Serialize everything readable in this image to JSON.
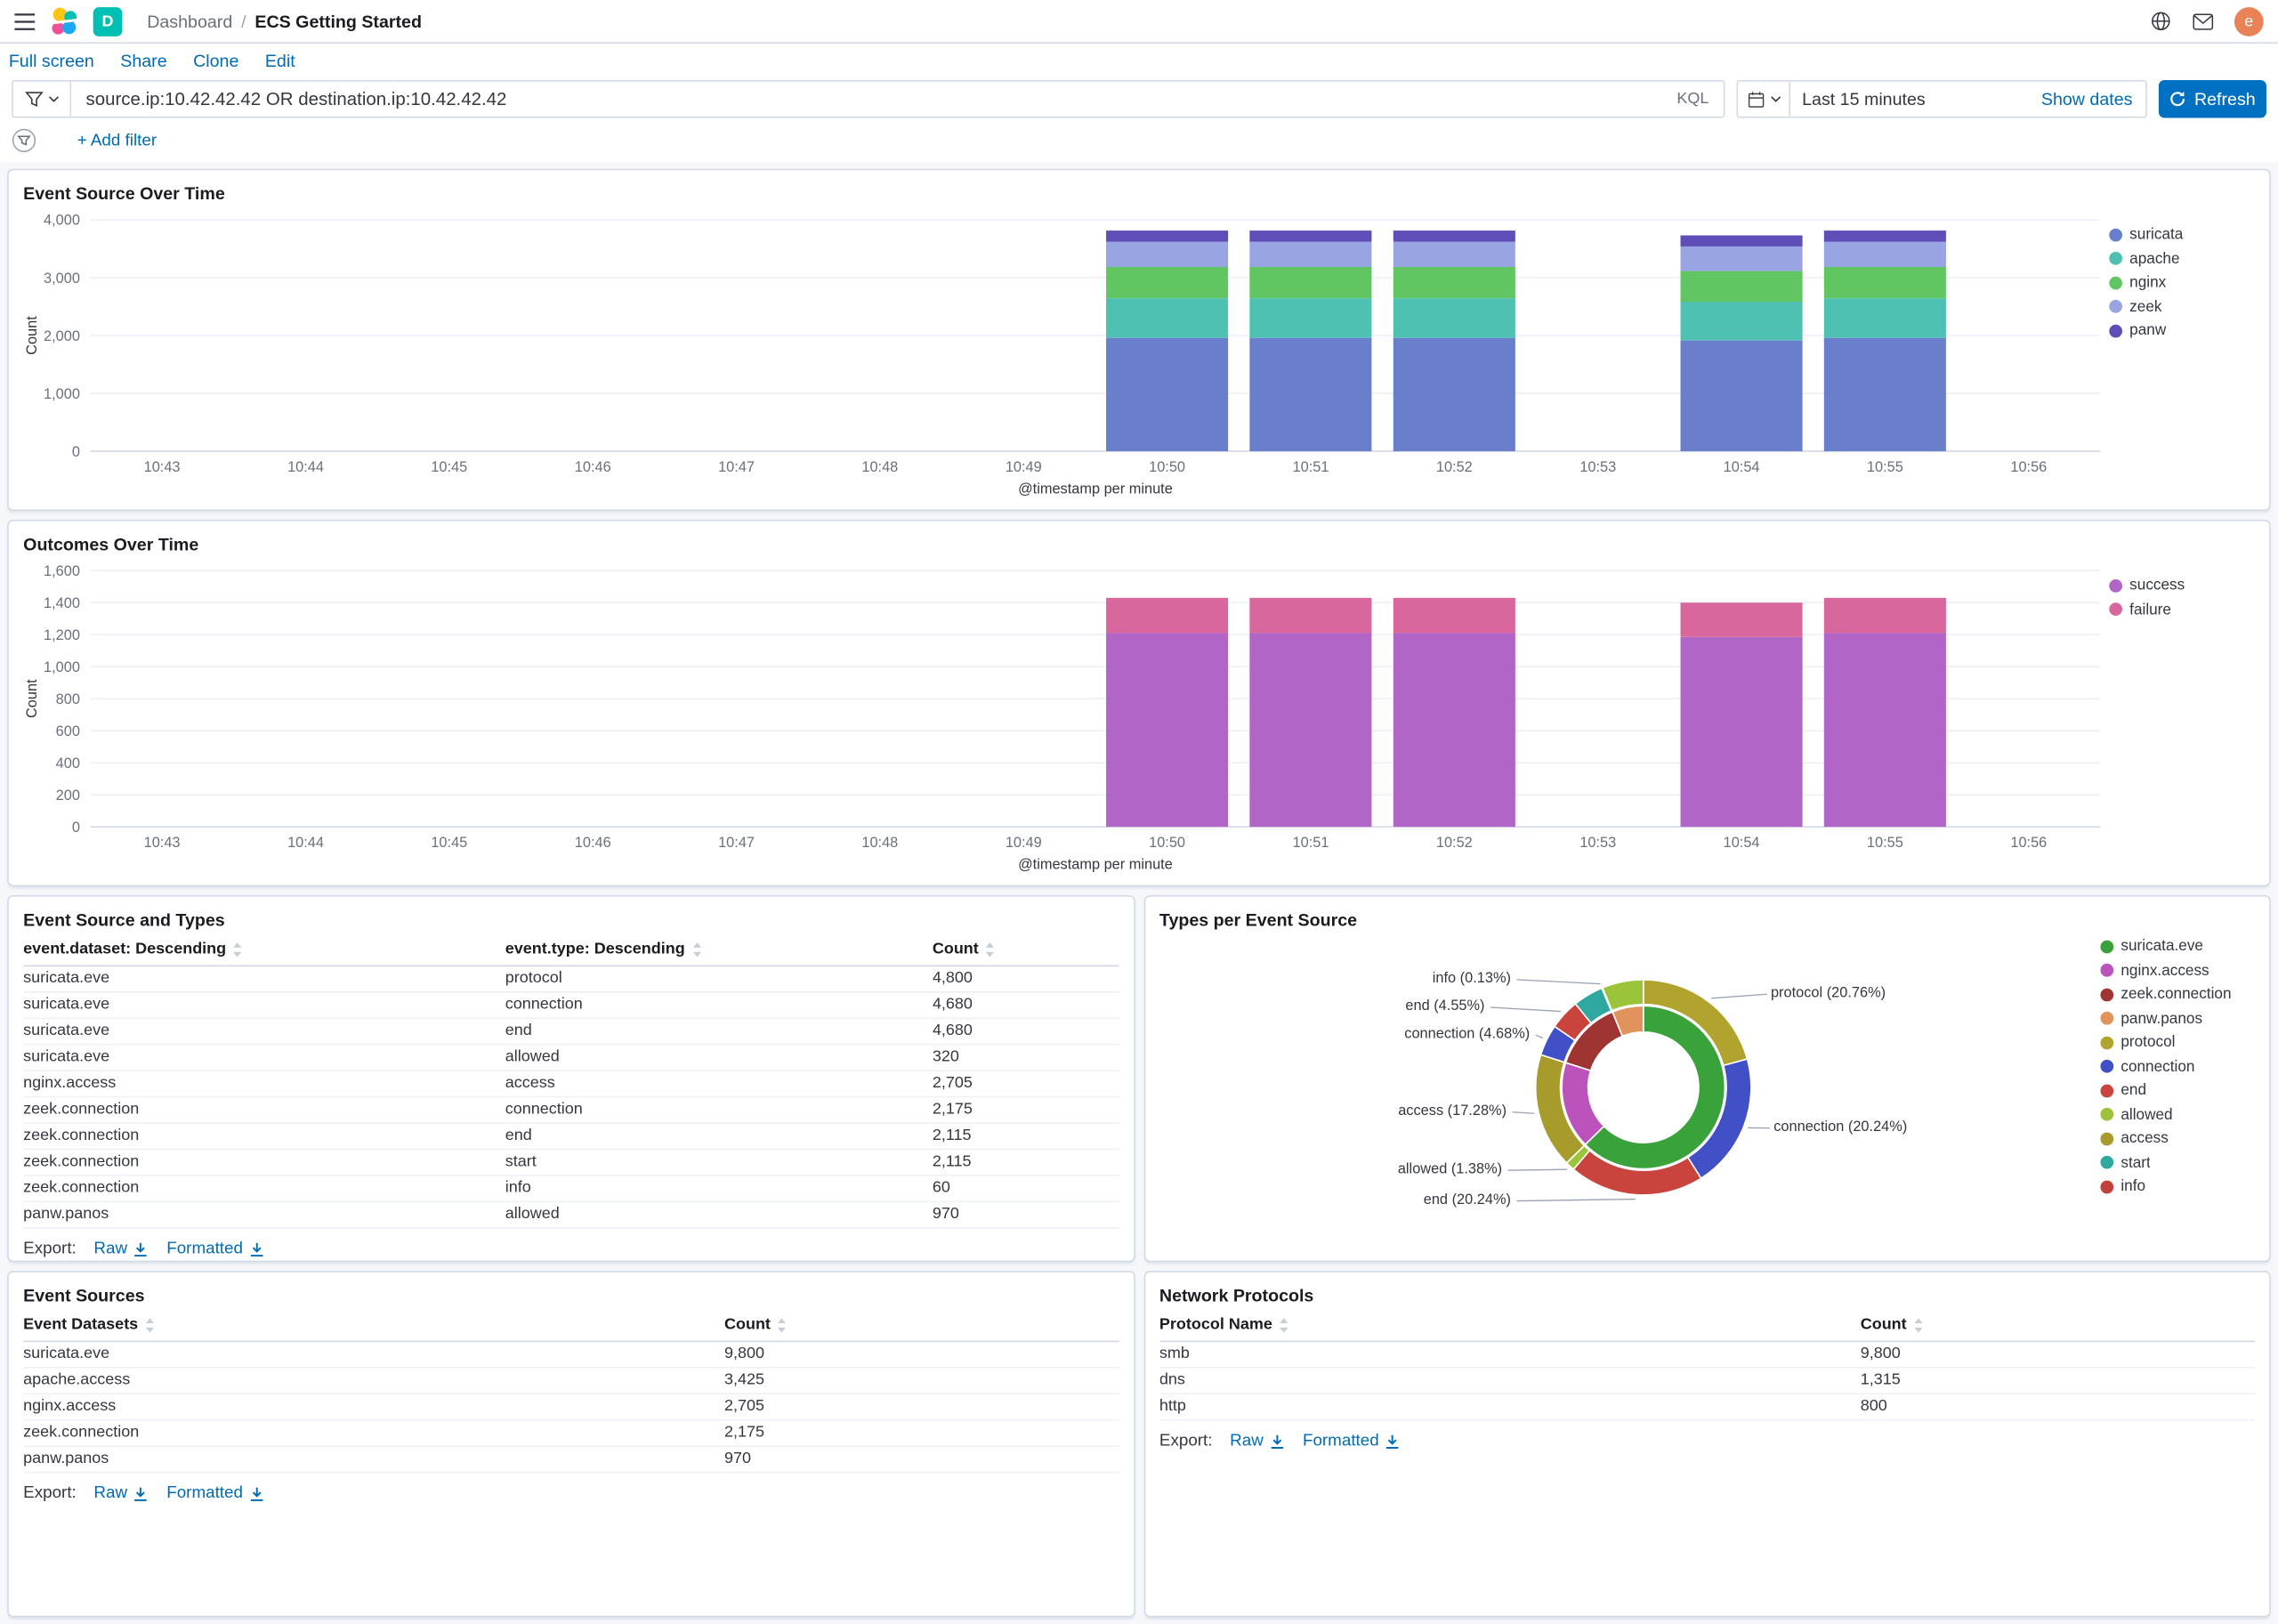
{
  "app": {
    "breadcrumbs": {
      "section": "Dashboard",
      "separator": "/",
      "current": "ECS Getting Started"
    },
    "space_initial": "D",
    "user_initial": "e"
  },
  "menu": {
    "full_screen": "Full screen",
    "share": "Share",
    "clone": "Clone",
    "edit": "Edit"
  },
  "query_bar": {
    "query": "source.ip:10.42.42.42 OR destination.ip:10.42.42.42",
    "language": "KQL",
    "time_range": "Last 15 minutes",
    "show_dates": "Show dates",
    "refresh": "Refresh"
  },
  "filter_bar": {
    "add_filter": "+ Add filter"
  },
  "export": {
    "label": "Export:",
    "raw": "Raw",
    "formatted": "Formatted"
  },
  "colors": {
    "primary": "#0071C2",
    "link": "#006BB4",
    "panel_border": "#D3DAE6",
    "page_background": "#F5F7FA"
  },
  "chart_data": [
    {
      "id": "event-source-over-time",
      "type": "bar",
      "stacked": true,
      "title": "Event Source Over Time",
      "xlabel": "@timestamp per minute",
      "ylabel": "Count",
      "ylim": [
        0,
        4000
      ],
      "ytick_step": 1000,
      "grid": true,
      "legend_position": "right",
      "categories": [
        "10:43",
        "10:44",
        "10:45",
        "10:46",
        "10:47",
        "10:48",
        "10:49",
        "10:50",
        "10:51",
        "10:52",
        "10:53",
        "10:54",
        "10:55",
        "10:56"
      ],
      "series": [
        {
          "name": "suricata",
          "color": "#6A7FCB",
          "values": [
            0,
            0,
            0,
            0,
            0,
            0,
            0,
            1960,
            1960,
            1960,
            0,
            1915,
            1960,
            0
          ]
        },
        {
          "name": "apache",
          "color": "#4EC1B2",
          "values": [
            0,
            0,
            0,
            0,
            0,
            0,
            0,
            685,
            685,
            685,
            0,
            670,
            685,
            0
          ]
        },
        {
          "name": "nginx",
          "color": "#61C561",
          "values": [
            0,
            0,
            0,
            0,
            0,
            0,
            0,
            541,
            541,
            541,
            0,
            530,
            541,
            0
          ]
        },
        {
          "name": "zeek",
          "color": "#99A5E2",
          "values": [
            0,
            0,
            0,
            0,
            0,
            0,
            0,
            435,
            435,
            435,
            0,
            425,
            435,
            0
          ]
        },
        {
          "name": "panw",
          "color": "#5F4EB8",
          "values": [
            0,
            0,
            0,
            0,
            0,
            0,
            0,
            194,
            194,
            194,
            0,
            190,
            194,
            0
          ]
        }
      ]
    },
    {
      "id": "outcomes-over-time",
      "type": "bar",
      "stacked": true,
      "title": "Outcomes Over Time",
      "xlabel": "@timestamp per minute",
      "ylabel": "Count",
      "ylim": [
        0,
        1600
      ],
      "ytick_step": 200,
      "grid": true,
      "legend_position": "right",
      "categories": [
        "10:43",
        "10:44",
        "10:45",
        "10:46",
        "10:47",
        "10:48",
        "10:49",
        "10:50",
        "10:51",
        "10:52",
        "10:53",
        "10:54",
        "10:55",
        "10:56"
      ],
      "series": [
        {
          "name": "success",
          "color": "#B165C6",
          "values": [
            0,
            0,
            0,
            0,
            0,
            0,
            0,
            1210,
            1210,
            1210,
            0,
            1185,
            1210,
            0
          ]
        },
        {
          "name": "failure",
          "color": "#D8679E",
          "values": [
            0,
            0,
            0,
            0,
            0,
            0,
            0,
            220,
            220,
            220,
            0,
            215,
            220,
            0
          ]
        }
      ]
    },
    {
      "id": "event-source-and-types",
      "type": "table",
      "title": "Event Source and Types",
      "columns": [
        {
          "label": "event.dataset: Descending",
          "width": "44%"
        },
        {
          "label": "event.type: Descending",
          "width": "39%"
        },
        {
          "label": "Count",
          "width": "17%"
        }
      ],
      "rows": [
        [
          "suricata.eve",
          "protocol",
          "4,800"
        ],
        [
          "suricata.eve",
          "connection",
          "4,680"
        ],
        [
          "suricata.eve",
          "end",
          "4,680"
        ],
        [
          "suricata.eve",
          "allowed",
          "320"
        ],
        [
          "nginx.access",
          "access",
          "2,705"
        ],
        [
          "zeek.connection",
          "connection",
          "2,175"
        ],
        [
          "zeek.connection",
          "end",
          "2,115"
        ],
        [
          "zeek.connection",
          "start",
          "2,115"
        ],
        [
          "zeek.connection",
          "info",
          "60"
        ],
        [
          "panw.panos",
          "allowed",
          "970"
        ]
      ]
    },
    {
      "id": "types-per-event-source",
      "type": "pie",
      "title": "Types per Event Source",
      "rings": {
        "inner": [
          {
            "name": "suricata.eve",
            "color": "#3AA23A",
            "pct": 62.62
          },
          {
            "name": "nginx.access",
            "color": "#BC52BC",
            "pct": 17.28
          },
          {
            "name": "zeek.connection",
            "color": "#9E3533",
            "pct": 13.91
          },
          {
            "name": "panw.panos",
            "color": "#E0945C",
            "pct": 6.19
          }
        ],
        "outer": [
          {
            "name": "protocol",
            "color": "#B0A32E",
            "pct": 20.76,
            "label": "protocol (20.76%)"
          },
          {
            "name": "connection",
            "color": "#4150C6",
            "pct": 20.24,
            "label": "connection (20.24%)"
          },
          {
            "name": "end",
            "color": "#C8443C",
            "pct": 20.24,
            "label": "end (20.24%)"
          },
          {
            "name": "allowed",
            "color": "#9CC43B",
            "pct": 1.38,
            "label": "allowed (1.38%)"
          },
          {
            "name": "access",
            "color": "#A79B2C",
            "pct": 17.28,
            "label": "access (17.28%)"
          },
          {
            "name": "connection",
            "color": "#4150C6",
            "pct": 4.68,
            "label": "connection (4.68%)"
          },
          {
            "name": "end",
            "color": "#C8443C",
            "pct": 4.55,
            "label": "end (4.55%)"
          },
          {
            "name": "start",
            "color": "#2FA8A0",
            "pct": 4.55,
            "label": null
          },
          {
            "name": "info",
            "color": "#C4403A",
            "pct": 0.13,
            "label": "info (0.13%)"
          },
          {
            "name": "allowed",
            "color": "#9CC43B",
            "pct": 6.19,
            "label": null
          }
        ]
      },
      "legend": [
        {
          "name": "suricata.eve",
          "color": "#3AA23A"
        },
        {
          "name": "nginx.access",
          "color": "#BC52BC"
        },
        {
          "name": "zeek.connection",
          "color": "#9E3533"
        },
        {
          "name": "panw.panos",
          "color": "#E0945C"
        },
        {
          "name": "protocol",
          "color": "#B0A32E"
        },
        {
          "name": "connection",
          "color": "#4150C6"
        },
        {
          "name": "end",
          "color": "#C8443C"
        },
        {
          "name": "allowed",
          "color": "#9CC43B"
        },
        {
          "name": "access",
          "color": "#A79B2C"
        },
        {
          "name": "start",
          "color": "#2FA8A0"
        },
        {
          "name": "info",
          "color": "#C4403A"
        }
      ]
    },
    {
      "id": "event-sources",
      "type": "table",
      "title": "Event Sources",
      "columns": [
        {
          "label": "Event Datasets",
          "width": "64%"
        },
        {
          "label": "Count",
          "width": "36%"
        }
      ],
      "rows": [
        [
          "suricata.eve",
          "9,800"
        ],
        [
          "apache.access",
          "3,425"
        ],
        [
          "nginx.access",
          "2,705"
        ],
        [
          "zeek.connection",
          "2,175"
        ],
        [
          "panw.panos",
          "970"
        ]
      ]
    },
    {
      "id": "network-protocols",
      "type": "table",
      "title": "Network Protocols",
      "columns": [
        {
          "label": "Protocol Name",
          "width": "64%"
        },
        {
          "label": "Count",
          "width": "36%"
        }
      ],
      "rows": [
        [
          "smb",
          "9,800"
        ],
        [
          "dns",
          "1,315"
        ],
        [
          "http",
          "800"
        ]
      ]
    }
  ]
}
